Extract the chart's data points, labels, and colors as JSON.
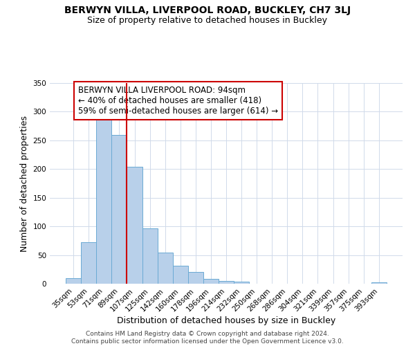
{
  "title": "BERWYN VILLA, LIVERPOOL ROAD, BUCKLEY, CH7 3LJ",
  "subtitle": "Size of property relative to detached houses in Buckley",
  "xlabel": "Distribution of detached houses by size in Buckley",
  "ylabel": "Number of detached properties",
  "bar_labels": [
    "35sqm",
    "53sqm",
    "71sqm",
    "89sqm",
    "107sqm",
    "125sqm",
    "142sqm",
    "160sqm",
    "178sqm",
    "196sqm",
    "214sqm",
    "232sqm",
    "250sqm",
    "268sqm",
    "286sqm",
    "304sqm",
    "321sqm",
    "339sqm",
    "357sqm",
    "375sqm",
    "393sqm"
  ],
  "bar_values": [
    10,
    73,
    286,
    260,
    204,
    96,
    54,
    31,
    21,
    8,
    5,
    4,
    0,
    0,
    0,
    0,
    0,
    0,
    0,
    0,
    2
  ],
  "bar_color": "#b8d0ea",
  "bar_edgecolor": "#6aaad4",
  "vline_x_index": 3,
  "vline_color": "#cc0000",
  "annotation_text": "BERWYN VILLA LIVERPOOL ROAD: 94sqm\n← 40% of detached houses are smaller (418)\n59% of semi-detached houses are larger (614) →",
  "annotation_box_edgecolor": "#cc0000",
  "annotation_box_facecolor": "#ffffff",
  "ylim": [
    0,
    350
  ],
  "yticks": [
    0,
    50,
    100,
    150,
    200,
    250,
    300,
    350
  ],
  "footer_line1": "Contains HM Land Registry data © Crown copyright and database right 2024.",
  "footer_line2": "Contains public sector information licensed under the Open Government Licence v3.0.",
  "title_fontsize": 10,
  "subtitle_fontsize": 9,
  "axis_label_fontsize": 9,
  "tick_fontsize": 7.5,
  "annotation_fontsize": 8.5,
  "footer_fontsize": 6.5,
  "grid_color": "#d0daea"
}
